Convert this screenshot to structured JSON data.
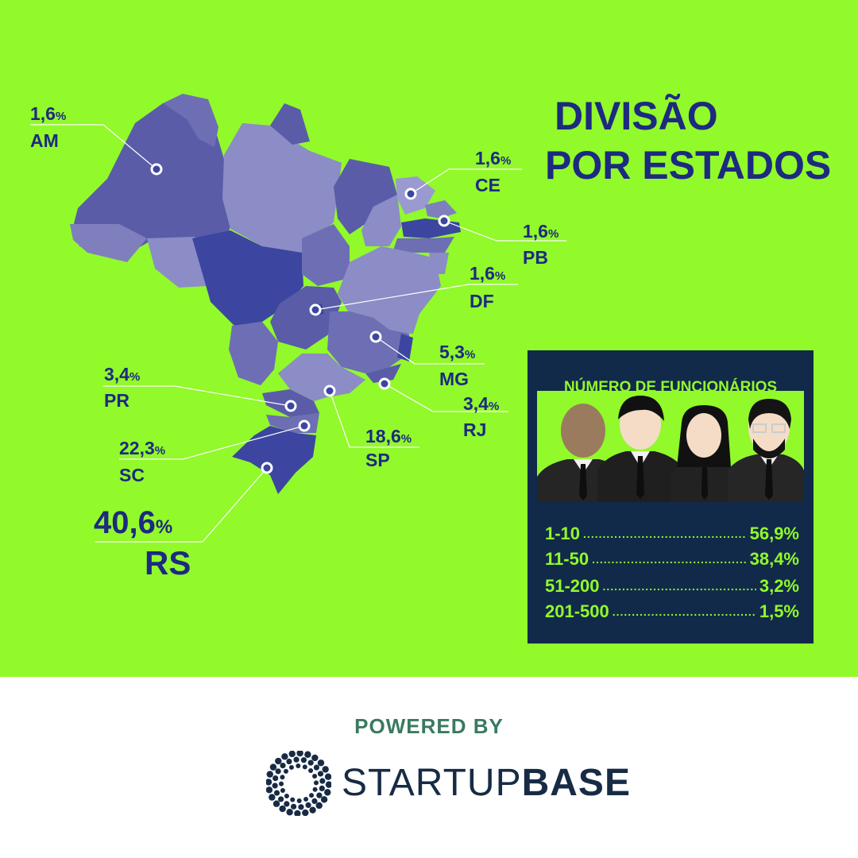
{
  "title": {
    "line1": "DIVISÃO",
    "line2": "POR ESTADOS"
  },
  "states": [
    {
      "code": "AM",
      "value": "1,6",
      "unit": "%"
    },
    {
      "code": "CE",
      "value": "1,6",
      "unit": "%"
    },
    {
      "code": "PB",
      "value": "1,6",
      "unit": "%"
    },
    {
      "code": "DF",
      "value": "1,6",
      "unit": "%"
    },
    {
      "code": "MG",
      "value": "5,3",
      "unit": "%"
    },
    {
      "code": "RJ",
      "value": "3,4",
      "unit": "%"
    },
    {
      "code": "PR",
      "value": "3,4",
      "unit": "%"
    },
    {
      "code": "SP",
      "value": "18,6",
      "unit": "%"
    },
    {
      "code": "SC",
      "value": "22,3",
      "unit": "%"
    },
    {
      "code": "RS",
      "value": "40,6",
      "unit": "%"
    }
  ],
  "employees": {
    "title": "NÚMERO DE FUNCIONÁRIOS",
    "rows": [
      {
        "range": "1-10",
        "value": "56,9%"
      },
      {
        "range": "11-50",
        "value": "38,4%"
      },
      {
        "range": "51-200",
        "value": "3,2%"
      },
      {
        "range": "201-500",
        "value": "1,5%"
      }
    ]
  },
  "footer": {
    "powered_by": "POWERED BY",
    "brand_light": "STARTUP",
    "brand_bold": "BASE"
  },
  "colors": {
    "background": "#92f92b",
    "navy": "#1c2a80",
    "panel": "#112a4a",
    "map_light": "#8c8cc6",
    "map_mid": "#6e6eb4",
    "map_dark": "#3c46a0"
  }
}
